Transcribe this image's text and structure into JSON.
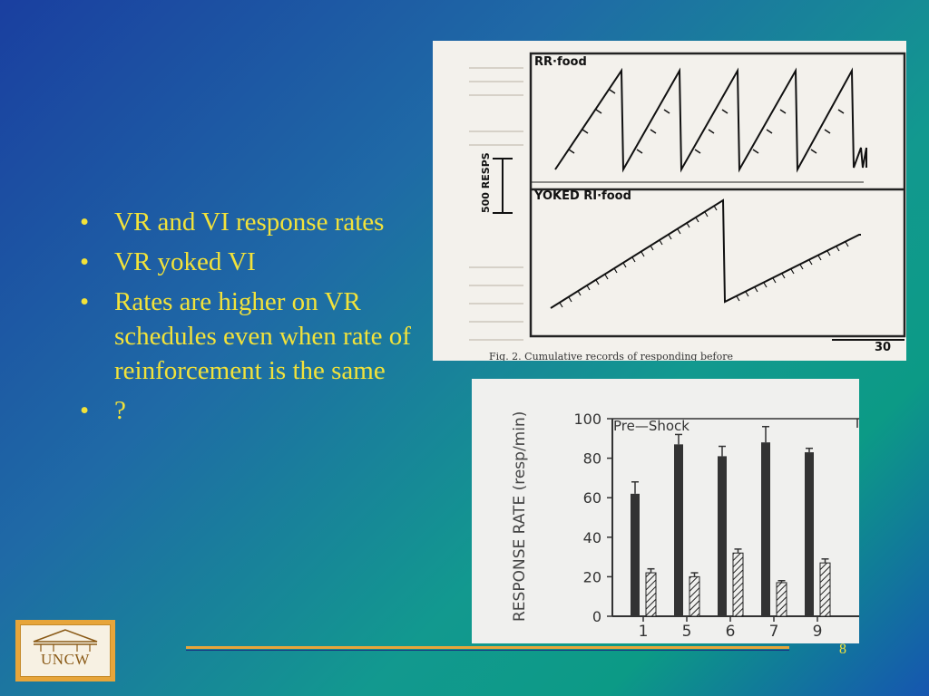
{
  "bullets": [
    "VR and VI response rates",
    "VR yoked VI",
    "Rates are higher on VR schedules even when rate of reinforcement is the same",
    "?"
  ],
  "page_number": "8",
  "logo_text": "UNCW",
  "colors": {
    "text_yellow": "#f2e23a",
    "footer_orange": "#e7a53a",
    "footer_navy": "#1a2f80",
    "bar_solid": "#333333"
  },
  "cumulative_record": {
    "top_label": "RR·food",
    "bottom_label": "YOKED RI·food",
    "scale_label": "500 RESPS",
    "time_label": "30",
    "caption": "Fig. 2.   Cumulative records of responding before"
  },
  "chart_data": {
    "type": "bar",
    "title": "Pre—Shock",
    "ylabel": "RESPONSE RATE (resp/min)",
    "xlabel": "",
    "categories": [
      "1",
      "5",
      "6",
      "7",
      "9"
    ],
    "ylim": [
      0,
      100
    ],
    "yticks": [
      "0",
      "20",
      "40",
      "60",
      "80",
      "100"
    ],
    "series": [
      {
        "style": "solid",
        "values": [
          62,
          87,
          81,
          88,
          83
        ],
        "errors": [
          6,
          5,
          5,
          8,
          2
        ]
      },
      {
        "style": "hatched",
        "values": [
          22,
          20,
          32,
          17,
          27
        ],
        "errors": [
          2,
          2,
          2,
          1,
          2
        ]
      }
    ]
  }
}
